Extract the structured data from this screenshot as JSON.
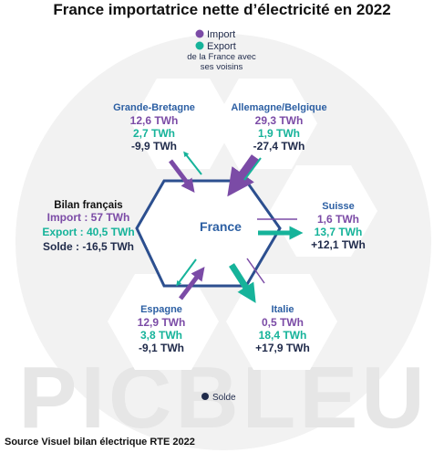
{
  "title": "France importatrice nette d’électricité en 2022",
  "colors": {
    "import": "#7b4ba6",
    "export": "#16b39a",
    "solde": "#1f2a4a",
    "hexagon": "#2c4f8f",
    "region_name": "#2c5fa3",
    "background_circle": "#f2f2f2",
    "watermark": "#e8e8e8"
  },
  "legend": {
    "import": "Import",
    "export": "Export",
    "subtitle_line1": "de la France avec",
    "subtitle_line2": "ses voisins",
    "solde": "Solde"
  },
  "center": {
    "label": "France"
  },
  "bilan": {
    "title": "Bilan français",
    "import": "Import : 57 TWh",
    "export": "Export : 40,5 TWh",
    "solde": "Solde : -16,5 TWh"
  },
  "neighbors": [
    {
      "name": "Grande-Bretagne",
      "import": "12,6 TWh",
      "export": "2,7 TWh",
      "solde": "-9,9 TWh"
    },
    {
      "name": "Allemagne/Belgique",
      "import": "29,3 TWh",
      "export": "1,9 TWh",
      "solde": "-27,4 TWh"
    },
    {
      "name": "Suisse",
      "import": "1,6 TWh",
      "export": "13,7 TWh",
      "solde": "+12,1 TWh"
    },
    {
      "name": "Espagne",
      "import": "12,9 TWh",
      "export": "3,8 TWh",
      "solde": "-9,1 TWh"
    },
    {
      "name": "Italie",
      "import": "0,5 TWh",
      "export": "18,4 TWh",
      "solde": "+17,9 TWh"
    }
  ],
  "watermark": "PICBLEU",
  "source": "Source Visuel bilan électrique RTE 2022"
}
